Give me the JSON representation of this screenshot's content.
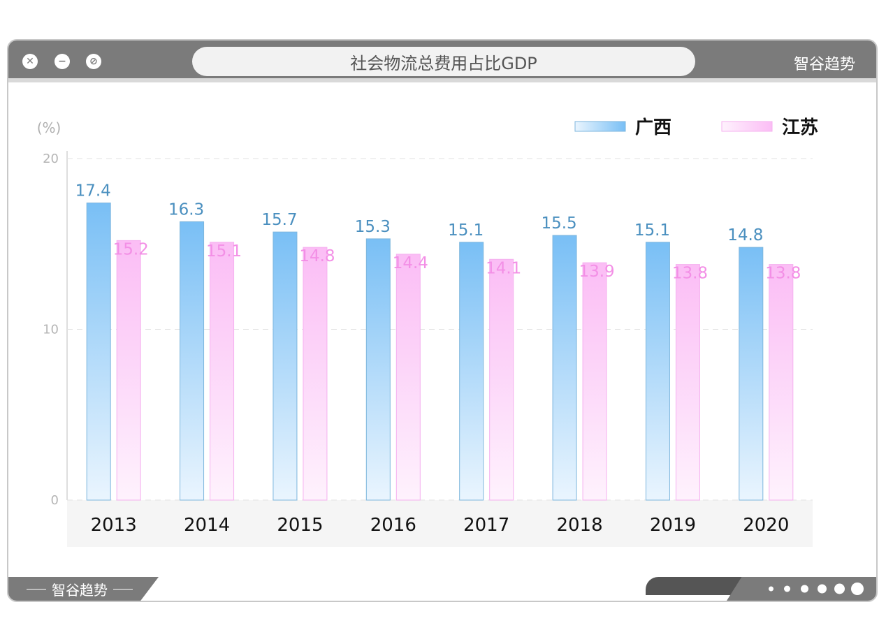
{
  "window": {
    "title": "社会物流总费用占比GDP",
    "brand": "智谷趋势",
    "footer_brand": "智谷趋势"
  },
  "chart_data": {
    "type": "bar",
    "categories": [
      "2013",
      "2014",
      "2015",
      "2016",
      "2017",
      "2018",
      "2019",
      "2020"
    ],
    "series": [
      {
        "name": "广西",
        "values": [
          17.4,
          16.3,
          15.7,
          15.3,
          15.1,
          15.5,
          15.1,
          14.8
        ],
        "color": "#79bff5",
        "label_color": "#4a8fbf"
      },
      {
        "name": "江苏",
        "values": [
          15.2,
          15.1,
          14.8,
          14.4,
          14.1,
          13.9,
          13.8,
          13.8
        ],
        "color": "#fbbdf5",
        "label_color": "#f38fe6"
      }
    ],
    "ylabel": "(%)",
    "ylim": [
      0,
      20
    ],
    "yticks": [
      "0",
      "10",
      "20"
    ],
    "grid": true,
    "legend": "top-right"
  }
}
